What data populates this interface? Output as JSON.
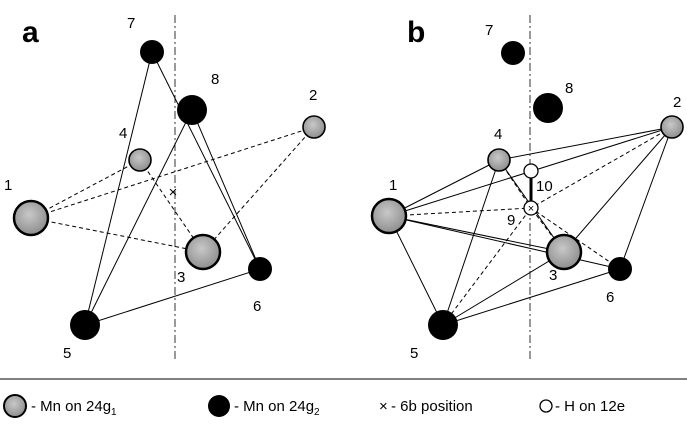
{
  "panels": [
    {
      "letter": "a",
      "atoms": [
        {
          "id": "1",
          "label": "1",
          "type": "g1",
          "size": "large"
        },
        {
          "id": "2",
          "label": "2",
          "type": "g1",
          "size": "small"
        },
        {
          "id": "3",
          "label": "3",
          "type": "g1",
          "size": "large"
        },
        {
          "id": "4",
          "label": "4",
          "type": "g1",
          "size": "small"
        },
        {
          "id": "5",
          "label": "5",
          "type": "g2",
          "size": "large"
        },
        {
          "id": "6",
          "label": "6",
          "type": "g2",
          "size": "small"
        },
        {
          "id": "7",
          "label": "7",
          "type": "g2",
          "size": "small"
        },
        {
          "id": "8",
          "label": "8",
          "type": "g2",
          "size": "large"
        }
      ],
      "marker_6b": true,
      "solid_edges": [
        [
          "7",
          "5"
        ],
        [
          "7",
          "6"
        ],
        [
          "8",
          "6"
        ],
        [
          "8",
          "5"
        ],
        [
          "5",
          "6"
        ]
      ],
      "dashed_edges": [
        [
          "1",
          "2"
        ],
        [
          "1",
          "4"
        ],
        [
          "1",
          "3"
        ],
        [
          "2",
          "3"
        ],
        [
          "4",
          "3"
        ]
      ]
    },
    {
      "letter": "b",
      "atoms": [
        {
          "id": "1",
          "label": "1",
          "type": "g1",
          "size": "large"
        },
        {
          "id": "2",
          "label": "2",
          "type": "g1",
          "size": "small"
        },
        {
          "id": "3",
          "label": "3",
          "type": "g1",
          "size": "large"
        },
        {
          "id": "4",
          "label": "4",
          "type": "g1",
          "size": "small"
        },
        {
          "id": "5",
          "label": "5",
          "type": "g2",
          "size": "large"
        },
        {
          "id": "6",
          "label": "6",
          "type": "g2",
          "size": "small"
        },
        {
          "id": "7",
          "label": "7",
          "type": "g2",
          "size": "small"
        },
        {
          "id": "8",
          "label": "8",
          "type": "g2",
          "size": "large"
        },
        {
          "id": "9",
          "label": "9",
          "type": "H",
          "size": "small"
        },
        {
          "id": "10",
          "label": "10",
          "type": "H",
          "size": "small"
        }
      ],
      "solid_edges": [
        [
          "1",
          "4"
        ],
        [
          "1",
          "2"
        ],
        [
          "1",
          "3"
        ],
        [
          "1",
          "6"
        ],
        [
          "1",
          "5"
        ],
        [
          "4",
          "2"
        ],
        [
          "4",
          "5"
        ],
        [
          "4",
          "3"
        ],
        [
          "2",
          "6"
        ],
        [
          "5",
          "3"
        ],
        [
          "5",
          "6"
        ],
        [
          "2",
          "3"
        ],
        [
          "9",
          "10"
        ]
      ],
      "dashed_edges": [
        [
          "1",
          "9"
        ],
        [
          "4",
          "9"
        ],
        [
          "2",
          "9"
        ],
        [
          "3",
          "9"
        ],
        [
          "5",
          "9"
        ],
        [
          "6",
          "9"
        ]
      ]
    }
  ],
  "legend": {
    "items": [
      {
        "symbol": "gray-circle",
        "text_prefix": "- Mn on 24g",
        "subscript": "1"
      },
      {
        "symbol": "black-circle",
        "text_prefix": "- Mn on 24g",
        "subscript": "2"
      },
      {
        "symbol": "cross",
        "glyph": "×",
        "text_prefix": "- 6b position",
        "subscript": ""
      },
      {
        "symbol": "open-circle",
        "text_prefix": "- H on 12e",
        "subscript": ""
      }
    ]
  },
  "colors": {
    "g1_fill": "#a9a9a9",
    "g2_fill": "#000000",
    "h_fill": "#ffffff",
    "stroke": "#000000"
  }
}
